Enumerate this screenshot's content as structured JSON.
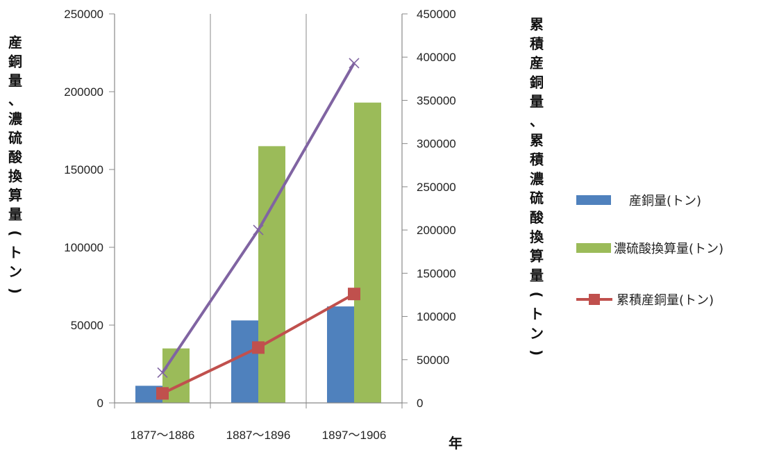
{
  "chart_data": {
    "type": "bar",
    "title": "",
    "categories": [
      "1877〜1886",
      "1887〜1896",
      "1897〜1906"
    ],
    "xlabel": "年",
    "ylabel_left": "産銅量、濃硫酸換算量(トン)",
    "ylabel_right": "累積産銅量、累積濃硫酸換算量(トン)",
    "ylim_left": [
      0,
      250000
    ],
    "ylim_right": [
      0,
      450000
    ],
    "yticks_left": [
      "0",
      "50000",
      "100000",
      "150000",
      "200000",
      "250000"
    ],
    "yticks_right": [
      "0",
      "50000",
      "100000",
      "150000",
      "200000",
      "250000",
      "300000",
      "350000",
      "400000",
      "450000"
    ],
    "series": [
      {
        "name": "産銅量(トン)",
        "kind": "bar",
        "axis": "left",
        "color": "#4f81bd",
        "values": [
          11000,
          53000,
          62000
        ]
      },
      {
        "name": "濃硫酸換算量(トン)",
        "kind": "bar",
        "axis": "left",
        "color": "#9bbb59",
        "values": [
          35000,
          165000,
          193000
        ]
      },
      {
        "name": "累積産銅量(トン)",
        "kind": "line",
        "axis": "right",
        "color": "#c0504d",
        "marker": "square",
        "values": [
          11000,
          64000,
          126000
        ]
      },
      {
        "kind": "line",
        "axis": "right",
        "color": "#8064a2",
        "marker": "x",
        "values": [
          35000,
          200000,
          393000
        ]
      }
    ],
    "legend": [
      "産銅量(トン)",
      "濃硫酸換算量(トン)",
      "累積産銅量(トン)"
    ],
    "legend_position": "right",
    "grid": "vertical"
  }
}
